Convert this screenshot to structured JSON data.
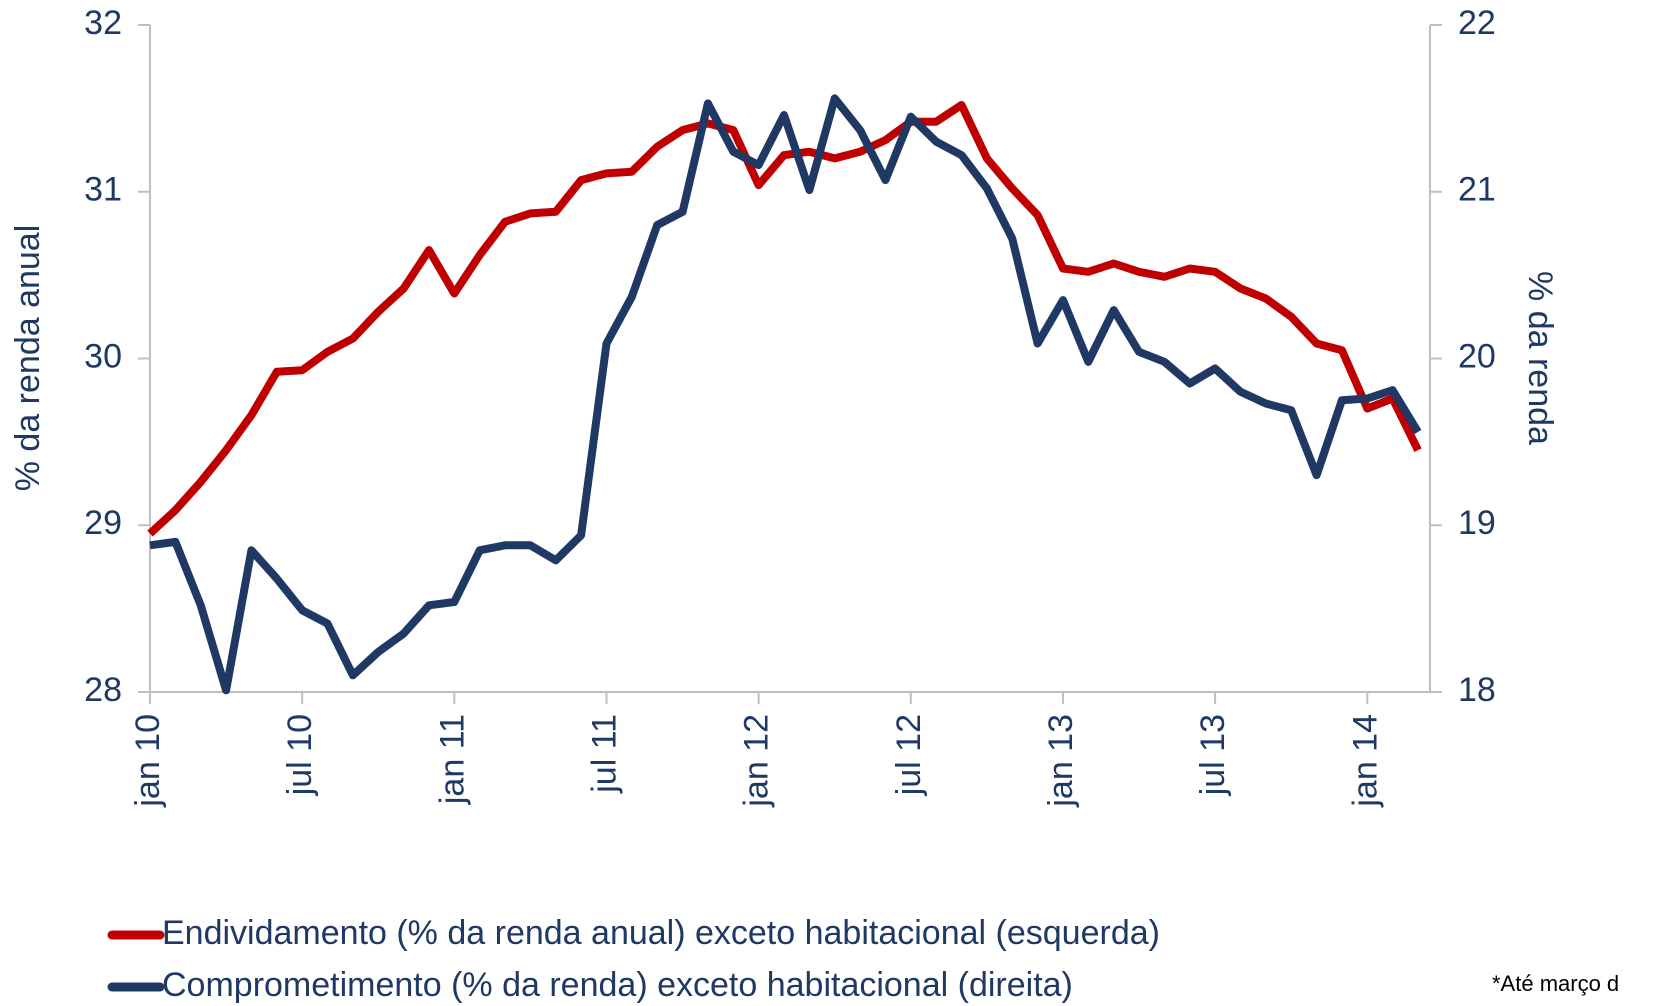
{
  "chart_data": {
    "type": "line",
    "y_label": "% da renda anual",
    "y2_label": "% da renda",
    "footnote": "*Até março d",
    "categories": [
      "jan 10",
      null,
      null,
      null,
      null,
      null,
      "jul 10",
      null,
      null,
      null,
      null,
      null,
      "jan 11",
      null,
      null,
      null,
      null,
      null,
      "jul 11",
      null,
      null,
      null,
      null,
      null,
      "jan 12",
      null,
      null,
      null,
      null,
      null,
      "jul 12",
      null,
      null,
      null,
      null,
      null,
      "jan 13",
      null,
      null,
      null,
      null,
      null,
      "jul 13",
      null,
      null,
      null,
      null,
      null,
      "jan 14",
      null,
      null
    ],
    "series": [
      {
        "name": "Endividamento (% da renda anual) exceto habitacional (esquerda)",
        "color": "#c00000",
        "values": [
          28.95,
          29.09,
          29.26,
          29.45,
          29.66,
          29.92,
          29.93,
          30.04,
          30.12,
          30.28,
          30.42,
          30.65,
          30.39,
          30.62,
          30.82,
          30.87,
          30.88,
          31.07,
          31.11,
          31.12,
          31.27,
          31.37,
          31.41,
          31.37,
          31.04,
          31.22,
          31.24,
          31.2,
          31.24,
          31.31,
          31.42,
          31.42,
          31.52,
          31.2,
          31.02,
          30.86,
          30.54,
          30.52,
          30.57,
          30.52,
          30.49,
          30.54,
          30.52,
          30.42,
          30.36,
          30.25,
          30.09,
          30.05,
          29.7,
          29.76,
          29.45
        ]
      },
      {
        "name": "Comprometimento (% da renda) exceto habitacional (direita)",
        "color": "#1f3864",
        "axis": "y2",
        "values": [
          18.88,
          18.9,
          18.52,
          18.01,
          18.85,
          18.68,
          18.49,
          18.41,
          18.1,
          18.24,
          18.35,
          18.52,
          18.54,
          18.85,
          18.88,
          18.88,
          18.79,
          18.94,
          20.09,
          20.37,
          20.8,
          20.88,
          21.53,
          21.24,
          21.16,
          21.46,
          21.01,
          21.56,
          21.37,
          21.07,
          21.45,
          21.3,
          21.22,
          21.02,
          20.72,
          20.09,
          20.35,
          19.98,
          20.29,
          20.04,
          19.98,
          19.85,
          19.94,
          19.8,
          19.73,
          19.69,
          19.3,
          19.75,
          19.76,
          19.81,
          19.56
        ]
      }
    ],
    "ylim": [
      28,
      32
    ],
    "yticks": [
      28,
      29,
      30,
      31,
      32
    ],
    "y2lim": [
      18,
      22
    ],
    "y2ticks": [
      18,
      19,
      20,
      21,
      22
    ]
  }
}
